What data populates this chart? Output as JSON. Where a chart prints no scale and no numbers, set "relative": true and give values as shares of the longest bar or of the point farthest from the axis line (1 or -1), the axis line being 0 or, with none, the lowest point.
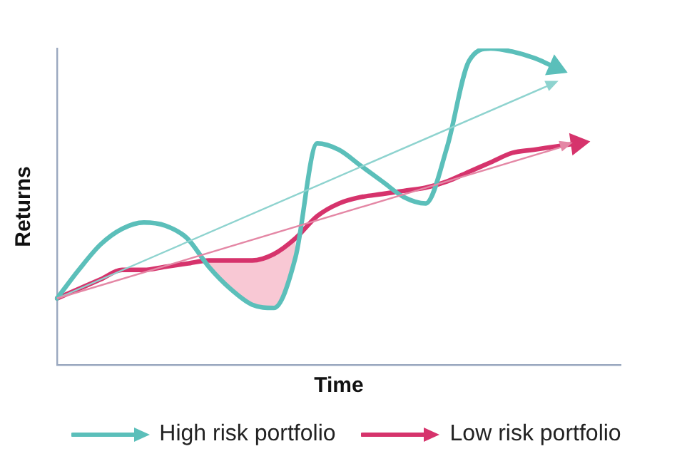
{
  "chart_data": {
    "type": "line",
    "relative": true,
    "xlabel": "Time",
    "ylabel": "Returns",
    "legend": "bottom",
    "grid": false,
    "marker": "none",
    "line_style": "solid",
    "categories": [
      null,
      null,
      null,
      null,
      null,
      null,
      null,
      null,
      null,
      null,
      null,
      null,
      null,
      null,
      null,
      null,
      null,
      null,
      null,
      null,
      null,
      null,
      null,
      null,
      null,
      null,
      null
    ],
    "series": [
      {
        "name": "High risk portfolio",
        "color": "#5bbfba",
        "values": [
          0.21,
          0.3,
          0.38,
          0.43,
          0.45,
          0.44,
          0.4,
          0.31,
          0.24,
          0.19,
          0.18,
          0.34,
          0.7,
          0.68,
          0.63,
          0.58,
          0.53,
          0.51,
          0.69,
          0.96,
          1.0,
          0.99,
          0.97,
          0.94,
          null,
          null,
          null
        ]
      },
      {
        "name": "Low risk portfolio",
        "color": "#d6336c",
        "values": [
          0.21,
          0.24,
          0.27,
          0.3,
          0.3,
          0.31,
          0.32,
          0.33,
          0.33,
          0.33,
          0.35,
          0.4,
          0.47,
          0.51,
          0.53,
          0.54,
          0.55,
          0.56,
          0.58,
          0.61,
          0.64,
          0.67,
          0.68,
          0.69,
          0.7,
          null,
          null
        ]
      }
    ]
  }
}
